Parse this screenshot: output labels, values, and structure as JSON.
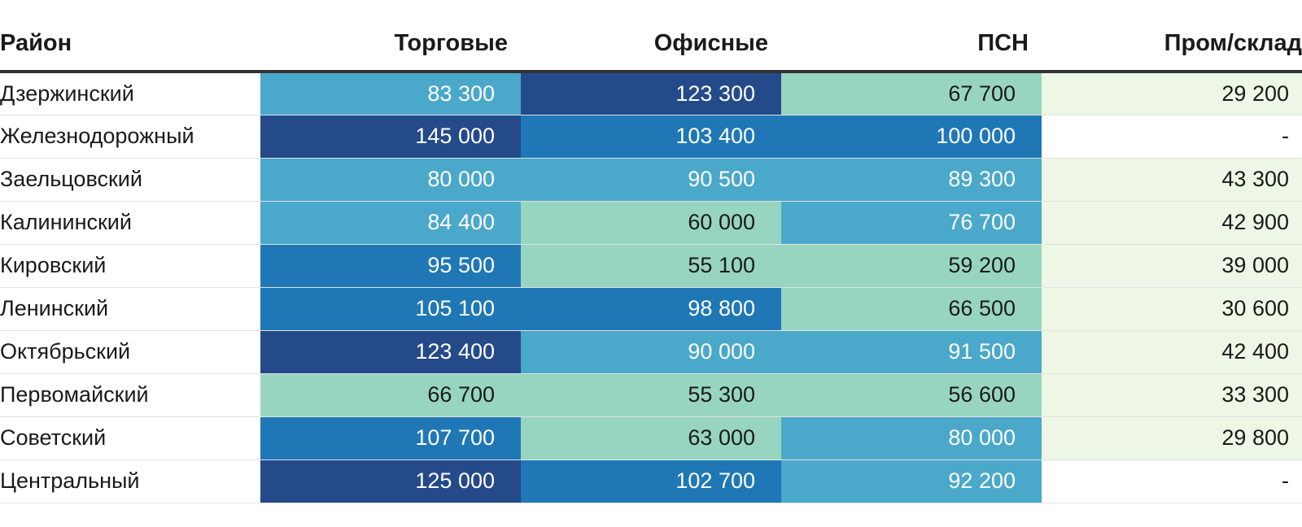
{
  "chart_data": {
    "type": "heatmap",
    "title": "",
    "columns": [
      "Район",
      "Торговые",
      "Офисные",
      "ПСН",
      "Пром/склад"
    ],
    "rows": [
      {
        "name": "Дзержинский",
        "cells": [
          "83 300",
          "123 300",
          "67 700",
          "29 200"
        ],
        "values": [
          83300,
          123300,
          67700,
          29200
        ]
      },
      {
        "name": "Железнодорожный",
        "cells": [
          "145 000",
          "103 400",
          "100 000",
          "-"
        ],
        "values": [
          145000,
          103400,
          100000,
          null
        ]
      },
      {
        "name": "Заельцовский",
        "cells": [
          "80 000",
          "90 500",
          "89 300",
          "43 300"
        ],
        "values": [
          80000,
          90500,
          89300,
          43300
        ]
      },
      {
        "name": "Калининский",
        "cells": [
          "84 400",
          "60 000",
          "76 700",
          "42 900"
        ],
        "values": [
          84400,
          60000,
          76700,
          42900
        ]
      },
      {
        "name": "Кировский",
        "cells": [
          "95 500",
          "55 100",
          "59 200",
          "39 000"
        ],
        "values": [
          95500,
          55100,
          59200,
          39000
        ]
      },
      {
        "name": "Ленинский",
        "cells": [
          "105 100",
          "98 800",
          "66 500",
          "30 600"
        ],
        "values": [
          105100,
          98800,
          66500,
          30600
        ]
      },
      {
        "name": "Октябрьский",
        "cells": [
          "123 400",
          "90 000",
          "91 500",
          "42 400"
        ],
        "values": [
          123400,
          90000,
          91500,
          42400
        ]
      },
      {
        "name": "Первомайский",
        "cells": [
          "66 700",
          "55 300",
          "56 600",
          "33 300"
        ],
        "values": [
          66700,
          55300,
          56600,
          33300
        ]
      },
      {
        "name": "Советский",
        "cells": [
          "107 700",
          "63 000",
          "80 000",
          "29 800"
        ],
        "values": [
          107700,
          63000,
          80000,
          29800
        ]
      },
      {
        "name": "Центральный",
        "cells": [
          "125 000",
          "102 700",
          "92 200",
          "-"
        ],
        "values": [
          125000,
          102700,
          92200,
          null
        ]
      }
    ],
    "color_scale": [
      {
        "min": 0,
        "max": 50000,
        "color": "#eef7e5",
        "text": "#1a1a1a"
      },
      {
        "min": 50000,
        "max": 70000,
        "color": "#97d5c1",
        "text": "#1a1a1a"
      },
      {
        "min": 70000,
        "max": 95000,
        "color": "#4aa8ca",
        "text": "#ffffff"
      },
      {
        "min": 95000,
        "max": 120000,
        "color": "#1f78b5",
        "text": "#ffffff"
      },
      {
        "min": 120000,
        "max": 1000000,
        "color": "#244a8a",
        "text": "#ffffff"
      }
    ],
    "empty_color": "#ffffff"
  }
}
